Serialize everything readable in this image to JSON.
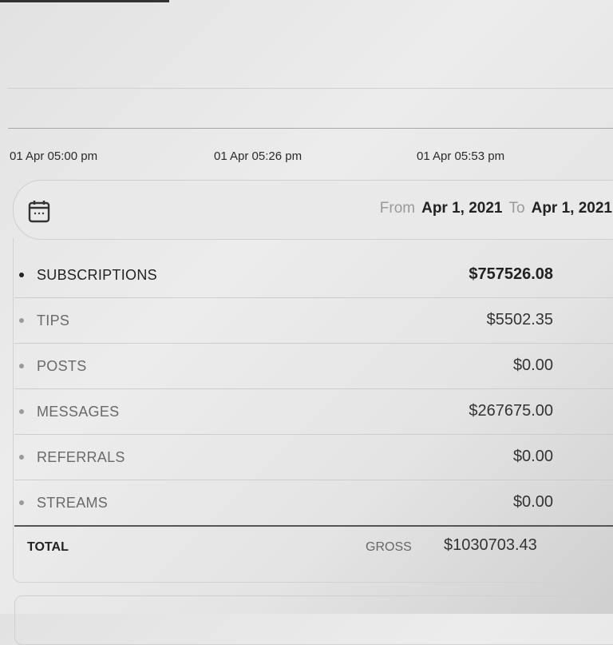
{
  "chart_axis": {
    "timestamps": [
      "01 Apr 05:00 pm",
      "01 Apr 05:26 pm",
      "01 Apr 05:53 pm"
    ]
  },
  "date_range": {
    "from_label": "From",
    "from_value": "Apr 1, 2021",
    "to_label": "To",
    "to_value": "Apr 1, 2021",
    "icon": "calendar-icon"
  },
  "earnings": {
    "rows": [
      {
        "label": "SUBSCRIPTIONS",
        "amount": "$757526.08"
      },
      {
        "label": "TIPS",
        "amount": "$5502.35"
      },
      {
        "label": "POSTS",
        "amount": "$0.00"
      },
      {
        "label": "MESSAGES",
        "amount": "$267675.00"
      },
      {
        "label": "REFERRALS",
        "amount": "$0.00"
      },
      {
        "label": "STREAMS",
        "amount": "$0.00"
      }
    ],
    "total_label": "TOTAL",
    "gross_label": "GROSS",
    "gross_amount": "$1030703.43"
  }
}
